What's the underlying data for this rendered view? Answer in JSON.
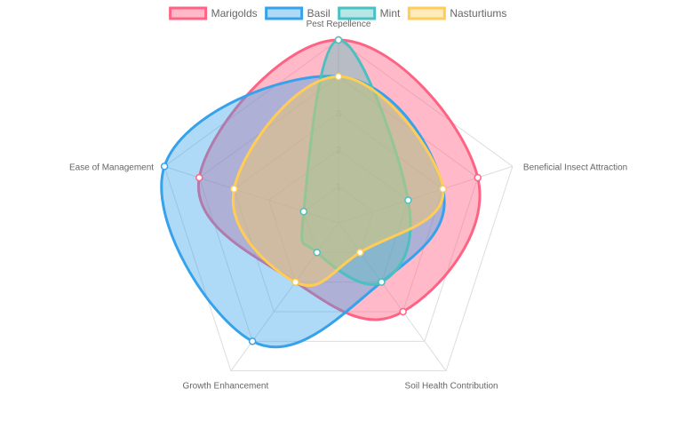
{
  "chart_data": {
    "type": "radar",
    "categories": [
      "Pest Repellence",
      "Beneficial Insect Attraction",
      "Soil Health Contribution",
      "Growth Enhancement",
      "Ease of Management"
    ],
    "r_ticks": [
      1,
      2,
      3
    ],
    "rlim": [
      0,
      5
    ],
    "legend_position": "top",
    "grid": true,
    "series": [
      {
        "name": "Marigolds",
        "values": [
          5,
          4,
          3,
          2,
          4
        ],
        "color": "#ff6384",
        "fill": "rgba(255,99,132,0.45)"
      },
      {
        "name": "Basil",
        "values": [
          4,
          3,
          2,
          4,
          5
        ],
        "color": "#36a2eb",
        "fill": "rgba(54,162,235,0.40)"
      },
      {
        "name": "Mint",
        "values": [
          5,
          2,
          2,
          1,
          1
        ],
        "color": "#4bc0c0",
        "fill": "rgba(75,192,192,0.40)"
      },
      {
        "name": "Nasturtiums",
        "values": [
          4,
          3,
          1,
          2,
          3
        ],
        "color": "#ffcd56",
        "fill": "rgba(255,205,86,0.40)"
      }
    ]
  }
}
